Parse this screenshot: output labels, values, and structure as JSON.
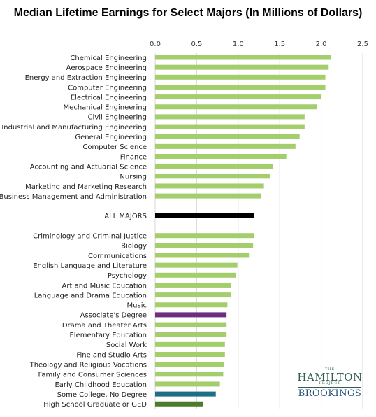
{
  "chart_data": {
    "type": "bar",
    "orientation": "horizontal",
    "title": "Median Lifetime Earnings for Select Majors (In Millions of Dollars)",
    "xlim": [
      0,
      2.5
    ],
    "x_ticks": [
      "0.0",
      "0.5",
      "1.0",
      "1.5",
      "2.0",
      "2.5"
    ],
    "x_tick_values": [
      0,
      0.5,
      1.0,
      1.5,
      2.0,
      2.5
    ],
    "grid": "vertical",
    "colors": {
      "major": "#a4cd6c",
      "all_majors": "#000000",
      "associates": "#6e2d7e",
      "some_college": "#1d6e86",
      "high_school": "#4a7c2c",
      "gridline": "#d9d9d9"
    },
    "bars": [
      {
        "label": "Chemical Engineering",
        "value": 2.12,
        "color": "#a4cd6c"
      },
      {
        "label": "Aerospace Engineering",
        "value": 2.09,
        "color": "#a4cd6c"
      },
      {
        "label": "Energy and Extraction Engineering",
        "value": 2.05,
        "color": "#a4cd6c"
      },
      {
        "label": "Computer Engineering",
        "value": 2.05,
        "color": "#a4cd6c"
      },
      {
        "label": "Electrical Engineering",
        "value": 2.0,
        "color": "#a4cd6c"
      },
      {
        "label": "Mechanical Engineering",
        "value": 1.95,
        "color": "#a4cd6c"
      },
      {
        "label": "Civil Engineering",
        "value": 1.8,
        "color": "#a4cd6c"
      },
      {
        "label": "Industrial and Manufacturing Engineering",
        "value": 1.8,
        "color": "#a4cd6c"
      },
      {
        "label": "General Engineering",
        "value": 1.74,
        "color": "#a4cd6c"
      },
      {
        "label": "Computer Science",
        "value": 1.69,
        "color": "#a4cd6c"
      },
      {
        "label": "Finance",
        "value": 1.58,
        "color": "#a4cd6c"
      },
      {
        "label": "Accounting and Actuarial Science",
        "value": 1.42,
        "color": "#a4cd6c"
      },
      {
        "label": "Nursing",
        "value": 1.38,
        "color": "#a4cd6c"
      },
      {
        "label": "Marketing and Marketing Research",
        "value": 1.31,
        "color": "#a4cd6c"
      },
      {
        "label": "Business Management and Administration",
        "value": 1.28,
        "color": "#a4cd6c"
      },
      {
        "label": "ALL MAJORS",
        "value": 1.19,
        "color": "#000000",
        "gap_before": true
      },
      {
        "label": "Criminology and Criminal Justice",
        "value": 1.19,
        "color": "#a4cd6c",
        "gap_before": true
      },
      {
        "label": "Biology",
        "value": 1.18,
        "color": "#a4cd6c"
      },
      {
        "label": "Communications",
        "value": 1.13,
        "color": "#a4cd6c"
      },
      {
        "label": "English Language and Literature",
        "value": 0.99,
        "color": "#a4cd6c"
      },
      {
        "label": "Psychology",
        "value": 0.97,
        "color": "#a4cd6c"
      },
      {
        "label": "Art and Music Education",
        "value": 0.91,
        "color": "#a4cd6c"
      },
      {
        "label": "Language and Drama Education",
        "value": 0.91,
        "color": "#a4cd6c"
      },
      {
        "label": "Music",
        "value": 0.87,
        "color": "#a4cd6c"
      },
      {
        "label": "Associate's Degree",
        "value": 0.86,
        "color": "#6e2d7e"
      },
      {
        "label": "Drama and Theater Arts",
        "value": 0.86,
        "color": "#a4cd6c"
      },
      {
        "label": "Elementary Education",
        "value": 0.86,
        "color": "#a4cd6c"
      },
      {
        "label": "Social Work",
        "value": 0.84,
        "color": "#a4cd6c"
      },
      {
        "label": "Fine and Studio Arts",
        "value": 0.84,
        "color": "#a4cd6c"
      },
      {
        "label": "Theology and Religious Vocations",
        "value": 0.83,
        "color": "#a4cd6c"
      },
      {
        "label": "Family and Consumer Sciences",
        "value": 0.82,
        "color": "#a4cd6c"
      },
      {
        "label": "Early Childhood Education",
        "value": 0.78,
        "color": "#a4cd6c"
      },
      {
        "label": "Some College, No Degree",
        "value": 0.73,
        "color": "#1d6e86"
      },
      {
        "label": "High School Graduate or GED",
        "value": 0.58,
        "color": "#4a7c2c"
      }
    ]
  },
  "logo": {
    "the": "THE",
    "hamilton": "HAMILTON",
    "project": "PROJECT",
    "brookings": "BROOKINGS"
  }
}
